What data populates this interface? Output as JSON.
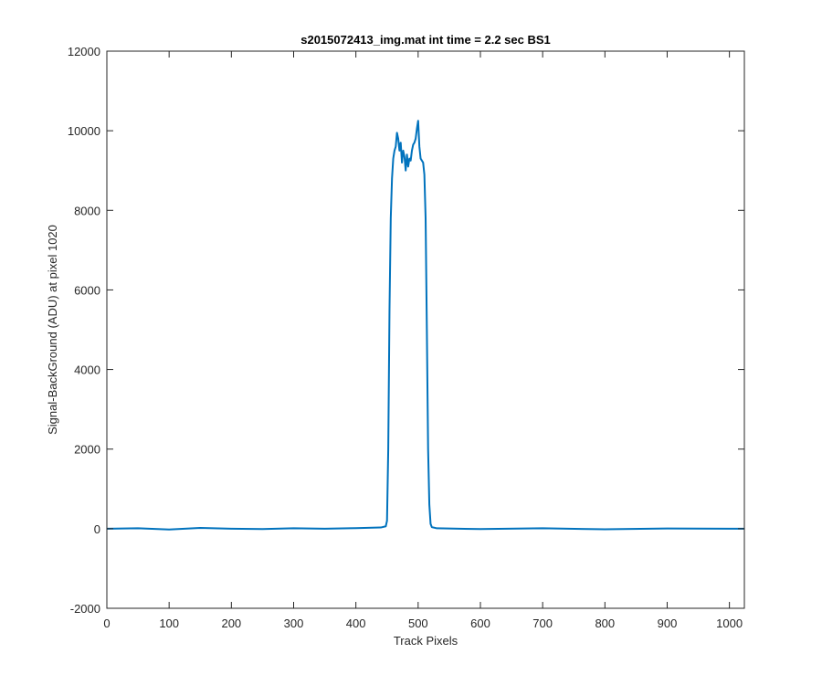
{
  "chart_data": {
    "type": "line",
    "title": "s2015072413_img.mat int time = 2.2 sec   BS1",
    "xlabel": "Track Pixels",
    "ylabel": "Signal-BackGround (ADU) at pixel 1020",
    "xlim": [
      0,
      1024
    ],
    "ylim": [
      -2000,
      12000
    ],
    "xticks": [
      0,
      100,
      200,
      300,
      400,
      500,
      600,
      700,
      800,
      900,
      1000
    ],
    "yticks": [
      -2000,
      0,
      2000,
      4000,
      6000,
      8000,
      10000,
      12000
    ],
    "grid": false,
    "line_color": "#0072BD",
    "series": [
      {
        "x": [
          0,
          50,
          100,
          150,
          200,
          250,
          300,
          350,
          400,
          440,
          448,
          450,
          452,
          454,
          456,
          458,
          460,
          462,
          464,
          466,
          468,
          470,
          472,
          474,
          476,
          478,
          480,
          482,
          484,
          486,
          488,
          490,
          492,
          494,
          496,
          498,
          500,
          502,
          504,
          506,
          508,
          510,
          512,
          514,
          516,
          518,
          520,
          522,
          530,
          600,
          700,
          800,
          900,
          1000,
          1024
        ],
        "y": [
          0,
          10,
          -20,
          20,
          0,
          -10,
          10,
          0,
          15,
          30,
          60,
          200,
          2000,
          5500,
          7800,
          8800,
          9300,
          9500,
          9600,
          9950,
          9800,
          9500,
          9700,
          9200,
          9500,
          9350,
          9000,
          9400,
          9100,
          9300,
          9250,
          9500,
          9650,
          9700,
          9800,
          10050,
          10250,
          9600,
          9300,
          9250,
          9200,
          8900,
          7800,
          5000,
          2000,
          600,
          120,
          40,
          10,
          -10,
          10,
          -15,
          5,
          0,
          0
        ]
      }
    ]
  }
}
